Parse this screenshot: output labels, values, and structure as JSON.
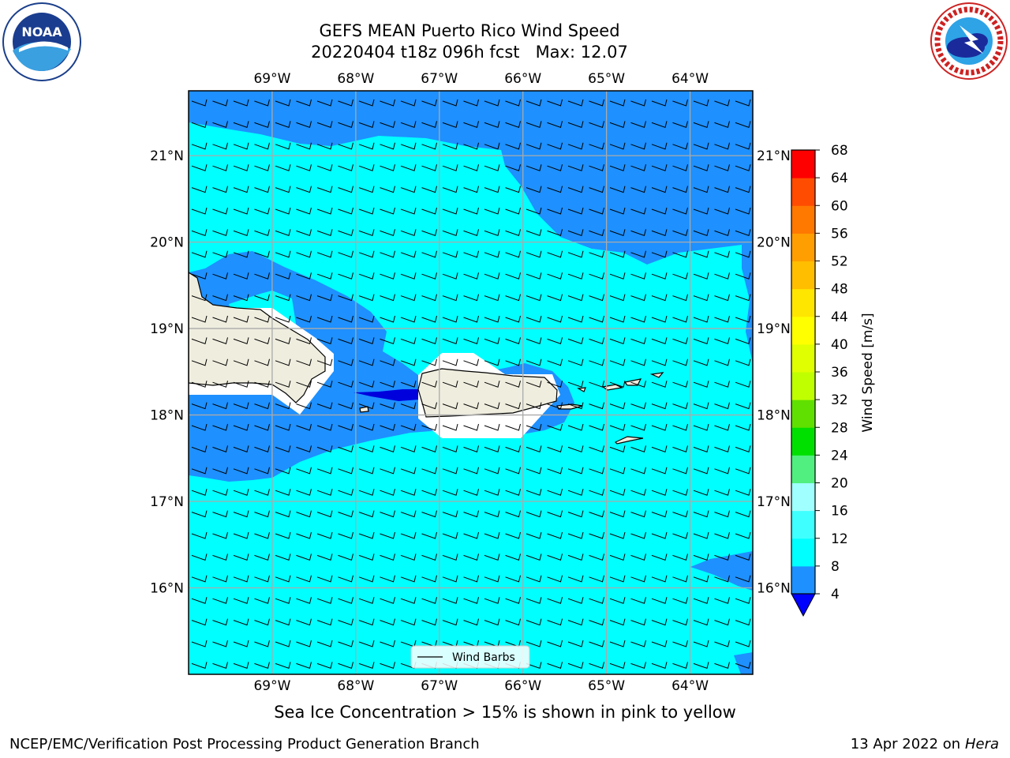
{
  "title": {
    "line1": "GEFS MEAN Puerto Rico Wind Speed",
    "line2": "20220404 t18z 096h fcst   Max: 12.07"
  },
  "logos": {
    "noaa": {
      "text": "NOAA",
      "ring_text": "NATIONAL OCEANIC AND ATMOSPHERIC ADMINISTRATION · U.S. DEPARTMENT OF COMMERCE",
      "icon": "noaa-logo"
    },
    "nws": {
      "ring_text": "NATIONAL WEATHER SERVICE",
      "icon": "nws-logo"
    }
  },
  "map": {
    "lon_range": [
      -70,
      -63.25
    ],
    "lat_range": [
      15,
      21.75
    ],
    "lon_ticks": [
      {
        "value": -69,
        "label": "69°W"
      },
      {
        "value": -68,
        "label": "68°W"
      },
      {
        "value": -67,
        "label": "67°W"
      },
      {
        "value": -66,
        "label": "66°W"
      },
      {
        "value": -65,
        "label": "65°W"
      },
      {
        "value": -64,
        "label": "64°W"
      }
    ],
    "lat_ticks": [
      {
        "value": 21,
        "label": "21°N"
      },
      {
        "value": 20,
        "label": "20°N"
      },
      {
        "value": 19,
        "label": "19°N"
      },
      {
        "value": 18,
        "label": "18°N"
      },
      {
        "value": 17,
        "label": "17°N"
      },
      {
        "value": 16,
        "label": "16°N"
      }
    ],
    "grid": true,
    "legend": {
      "label": "Wind Barbs",
      "placement": "bottom-center"
    },
    "fill_colors": {
      "land": "#efedde",
      "missing": "#ffffff",
      "band_4_8": "#1e90ff",
      "band_8_12": "#00ffff",
      "below_4": "#0000dd"
    },
    "barb_direction": "easterly"
  },
  "colorbar": {
    "label": "Wind Speed [m/s]",
    "levels": [
      4,
      8,
      12,
      16,
      20,
      24,
      28,
      32,
      36,
      40,
      44,
      48,
      52,
      56,
      60,
      64,
      68
    ],
    "colors": [
      "#1e90ff",
      "#00ffff",
      "#40ffff",
      "#a0ffff",
      "#50ef7f",
      "#00e000",
      "#60e000",
      "#c0ff00",
      "#e0ff00",
      "#ffff00",
      "#ffe600",
      "#ffbe00",
      "#ff9e00",
      "#ff7800",
      "#ff4c00",
      "#ff0000"
    ],
    "under_color": "#0000ff"
  },
  "note": "Sea Ice Concentration > 15% is shown in pink to yellow",
  "footer": {
    "left": "NCEP/EMC/Verification Post Processing Product Generation Branch",
    "right_date": "13 Apr 2022 on ",
    "right_host": "Hera"
  }
}
